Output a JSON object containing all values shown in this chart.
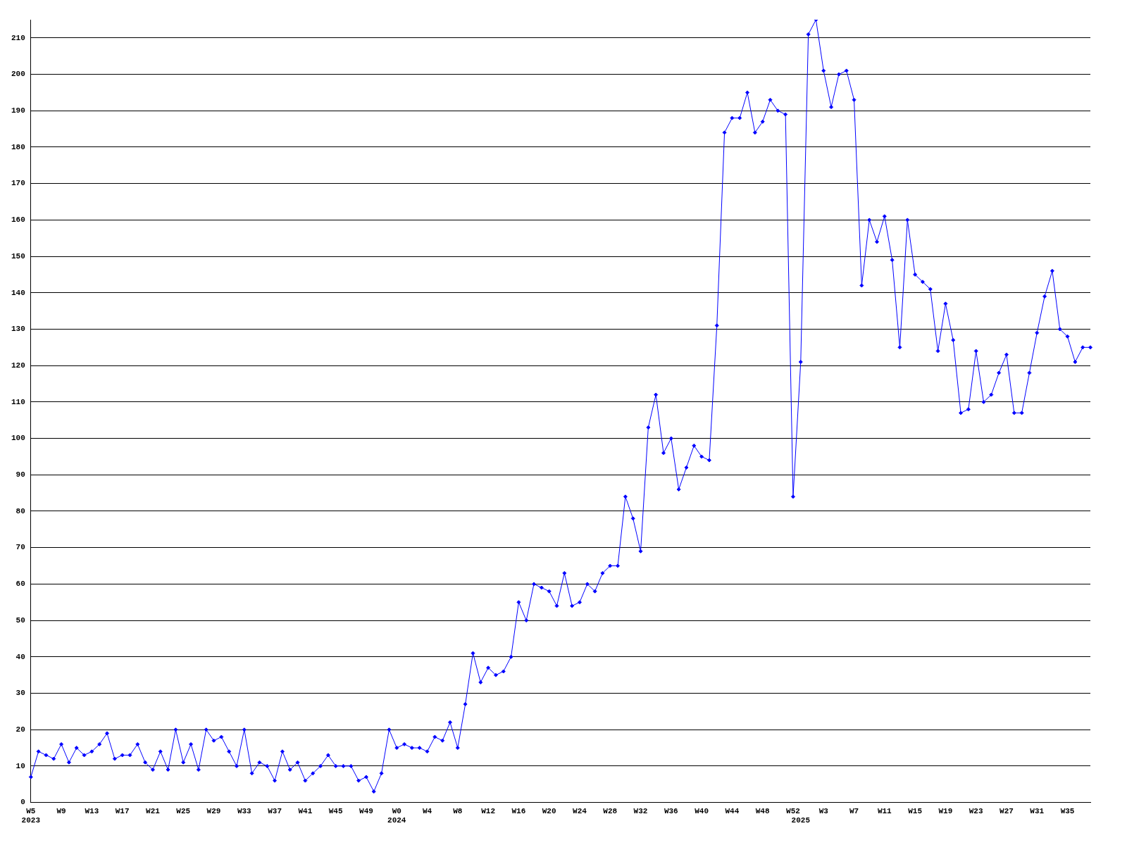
{
  "chart_data": {
    "type": "line",
    "categories": [
      "W5\n2023",
      null,
      null,
      null,
      "W9",
      null,
      null,
      null,
      "W13",
      null,
      null,
      null,
      "W17",
      null,
      null,
      null,
      "W21",
      null,
      null,
      null,
      "W25",
      null,
      null,
      null,
      "W29",
      null,
      null,
      null,
      "W33",
      null,
      null,
      null,
      "W37",
      null,
      null,
      null,
      "W41",
      null,
      null,
      null,
      "W45",
      null,
      null,
      null,
      "W49",
      null,
      null,
      null,
      "W0\n2024",
      null,
      null,
      null,
      "W4",
      null,
      null,
      null,
      "W8",
      null,
      null,
      null,
      "W12",
      null,
      null,
      null,
      "W16",
      null,
      null,
      null,
      "W20",
      null,
      null,
      null,
      "W24",
      null,
      null,
      null,
      "W28",
      null,
      null,
      null,
      "W32",
      null,
      null,
      null,
      "W36",
      null,
      null,
      null,
      "W40",
      null,
      null,
      null,
      "W44",
      null,
      null,
      null,
      "W48",
      null,
      null,
      null,
      "W52",
      "\n2025",
      null,
      null,
      "W3",
      null,
      null,
      null,
      "W7",
      null,
      null,
      null,
      "W11",
      null,
      null,
      null,
      "W15",
      null,
      null,
      null,
      "W19",
      null,
      null,
      null,
      "W23",
      null,
      null,
      null,
      "W27",
      null,
      null,
      null,
      "W31",
      null,
      null,
      null,
      "W35",
      null,
      null,
      null
    ],
    "series": [
      {
        "color": "#0000ff",
        "values": [
          7,
          14,
          13,
          12,
          16,
          11,
          15,
          13,
          14,
          16,
          19,
          12,
          13,
          13,
          16,
          11,
          9,
          14,
          9,
          20,
          11,
          16,
          9,
          20,
          17,
          18,
          14,
          10,
          20,
          8,
          11,
          10,
          6,
          14,
          9,
          11,
          6,
          8,
          10,
          13,
          10,
          10,
          10,
          6,
          7,
          3,
          8,
          20,
          15,
          16,
          15,
          15,
          14,
          18,
          17,
          22,
          15,
          27,
          41,
          33,
          37,
          35,
          36,
          40,
          55,
          50,
          60,
          59,
          58,
          54,
          63,
          54,
          55,
          60,
          58,
          63,
          65,
          65,
          84,
          78,
          69,
          103,
          112,
          96,
          100,
          86,
          92,
          98,
          95,
          94,
          131,
          184,
          188,
          188,
          195,
          184,
          187,
          193,
          190,
          189,
          84,
          121,
          211,
          215,
          201,
          191,
          200,
          201,
          193,
          142,
          160,
          154,
          161,
          149,
          125,
          160,
          145,
          143,
          141,
          124,
          137,
          127,
          107,
          108,
          124,
          110,
          112,
          118,
          123,
          107,
          107,
          118,
          129,
          139,
          146,
          130,
          128,
          121,
          125,
          125
        ]
      }
    ],
    "ylim": [
      0,
      215
    ],
    "yticks": [
      0,
      10,
      20,
      30,
      40,
      50,
      60,
      70,
      80,
      90,
      100,
      110,
      120,
      130,
      140,
      150,
      160,
      170,
      180,
      190,
      200,
      210
    ],
    "grid": "y",
    "legend": false,
    "marker": "diamond",
    "line_style": "solid"
  }
}
